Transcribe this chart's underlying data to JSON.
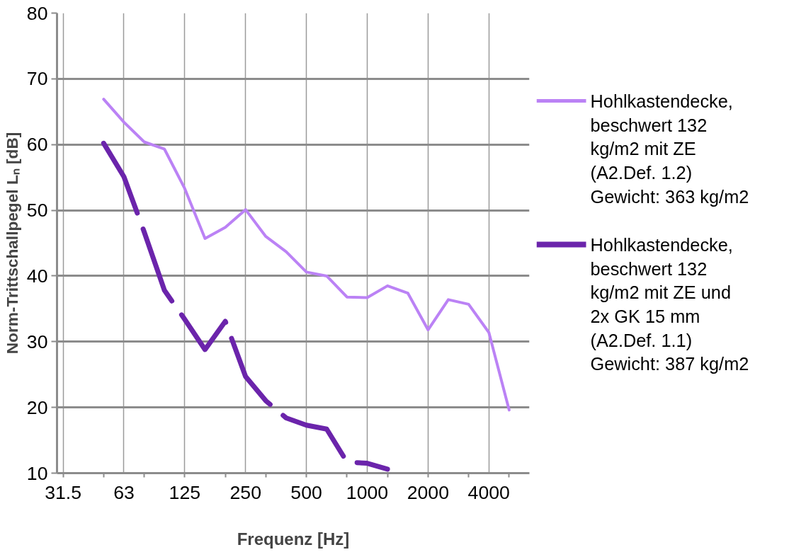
{
  "chart_data": {
    "type": "line",
    "xlabel": "Frequenz [Hz]",
    "ylabel": "Norm-Trittschallpegel Lₙ [dB]",
    "categories": [
      "31.5",
      null,
      null,
      "63",
      null,
      null,
      "125",
      null,
      null,
      "250",
      null,
      null,
      "500",
      null,
      null,
      "1000",
      null,
      null,
      "2000",
      null,
      null,
      "4000",
      null,
      null
    ],
    "series": [
      {
        "name": "Hohlkastendecke, beschwert 132 kg/m2 mit ZE (A2.Def. 1.2) Gewicht: 363 kg/m2",
        "color": "#bb82f5",
        "line_style": "solid",
        "values": [
          null,
          null,
          66.9,
          63.4,
          60.4,
          59.3,
          53.3,
          45.7,
          47.4,
          50.1,
          46.0,
          43.7,
          40.6,
          40.0,
          36.8,
          36.7,
          38.5,
          37.4,
          31.8,
          36.4,
          35.7,
          31.4,
          19.6,
          null
        ]
      },
      {
        "name": "Hohlkastendecke, beschwert 132 kg/m2 mit ZE und 2x GK 15 mm (A2.Def. 1.1) Gewicht: 387 kg/m2",
        "color": "#6b24ab",
        "line_style": "dashed",
        "values": [
          null,
          null,
          60.2,
          55.1,
          46.7,
          37.8,
          33.4,
          28.8,
          33.1,
          24.7,
          21.0,
          18.4,
          17.3,
          16.7,
          11.7,
          11.5,
          10.6,
          null,
          null,
          null,
          null,
          null,
          null,
          null
        ]
      }
    ],
    "ylim": [
      10,
      80
    ],
    "yticks": [
      10,
      20,
      30,
      40,
      50,
      60,
      70,
      80
    ],
    "grid": true,
    "legend": "right",
    "marker": "none"
  }
}
